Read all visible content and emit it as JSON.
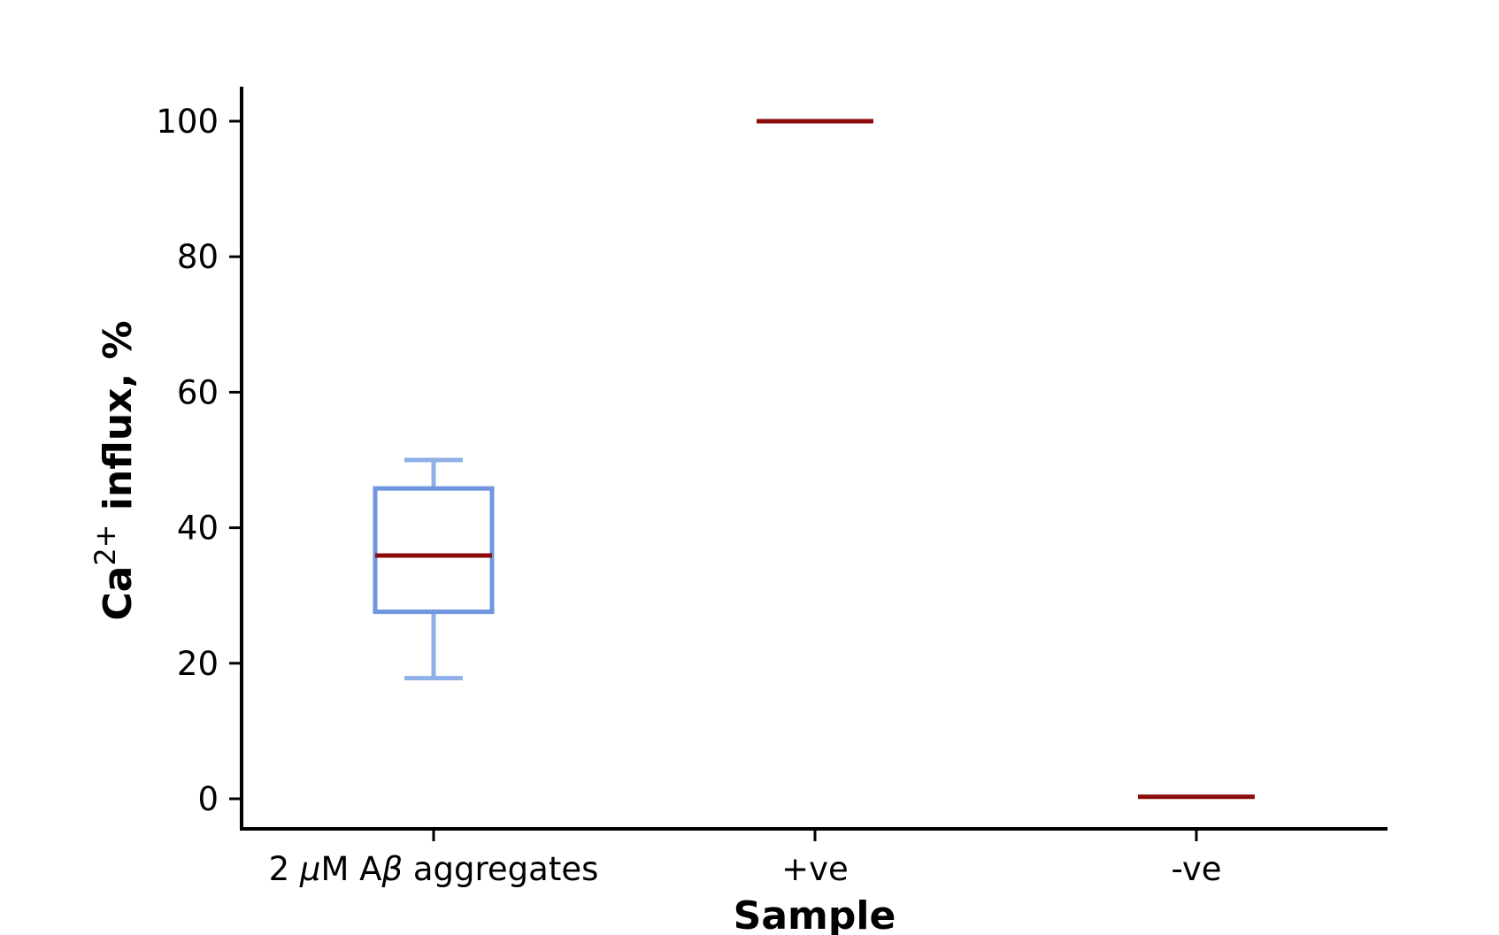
{
  "chart_data": {
    "type": "box",
    "xlabel": "Sample",
    "ylabel": {
      "prefix": "Ca",
      "superscript": "2+",
      "suffix": " influx, %"
    },
    "ylim": [
      -4.5,
      105
    ],
    "yticks": [
      0,
      20,
      40,
      60,
      80,
      100
    ],
    "grid": false,
    "legend": "none",
    "categories": [
      {
        "label_parts": [
          "2 ",
          "μ",
          "M A",
          "β",
          " aggregates"
        ],
        "italic_parts": [
          1,
          3
        ]
      },
      {
        "label_parts": [
          "+ve"
        ],
        "italic_parts": []
      },
      {
        "label_parts": [
          "-ve"
        ],
        "italic_parts": []
      }
    ],
    "boxes": [
      {
        "whisker_low": 17.8,
        "q1": 27.6,
        "median": 35.9,
        "q3": 45.8,
        "whisker_high": 50.0
      },
      {
        "whisker_low": 100.0,
        "q1": 100.0,
        "median": 100.0,
        "q3": 100.0,
        "whisker_high": 100.0
      },
      {
        "whisker_low": 0.3,
        "q1": 0.3,
        "median": 0.3,
        "q3": 0.3,
        "whisker_high": 0.3
      }
    ],
    "colors": {
      "box": "#6f96df",
      "whisker": "#8eb0e6",
      "median": "#8b0a0a",
      "axis": "#000000"
    }
  }
}
